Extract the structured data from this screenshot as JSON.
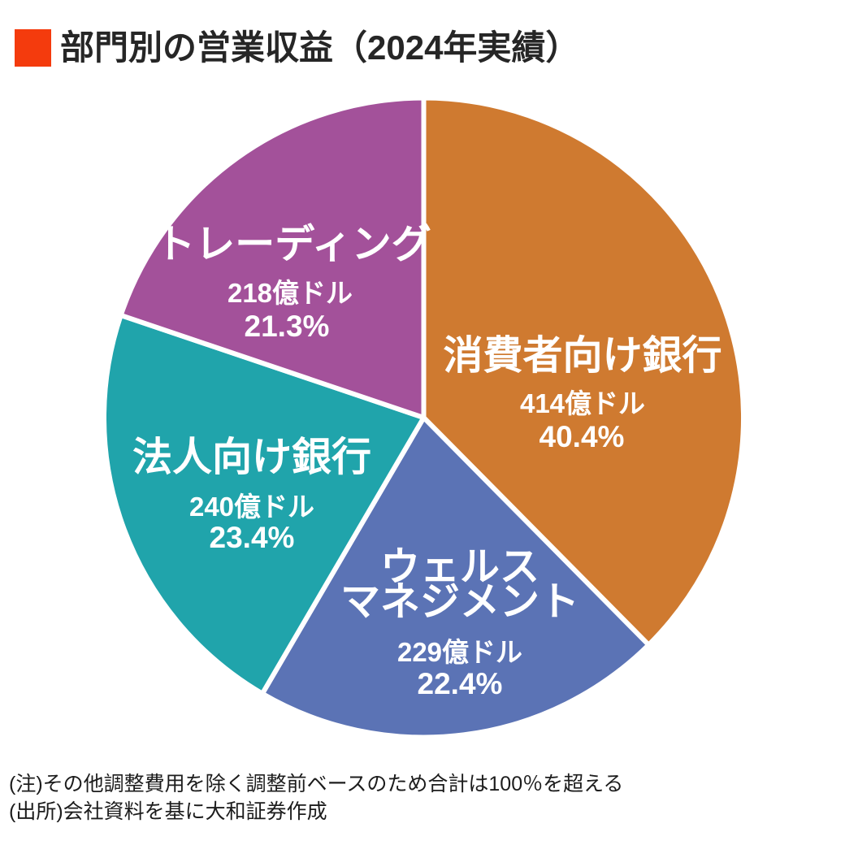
{
  "header": {
    "title": "部門別の営業収益（2024年実績）",
    "accent_color": "#f43b0d"
  },
  "chart_data": {
    "type": "pie",
    "title": "部門別の営業収益（2024年実績）",
    "unit": "億ドル",
    "start_angle_deg": 0,
    "direction": "clockwise",
    "legend_position": "none",
    "labels_inside_slices": true,
    "slices": [
      {
        "name": "消費者向け銀行",
        "value": 414,
        "percent": 40.4,
        "value_label": "414億ドル",
        "percent_label": "40.4%",
        "color": "#cf7a30"
      },
      {
        "name": "ウェルスマネジメント",
        "name_lines": [
          "ウェルス",
          "マネジメント"
        ],
        "value": 229,
        "percent": 22.4,
        "value_label": "229億ドル",
        "percent_label": "22.4%",
        "color": "#5b73b5"
      },
      {
        "name": "法人向け銀行",
        "value": 240,
        "percent": 23.4,
        "value_label": "240億ドル",
        "percent_label": "23.4%",
        "color": "#20a4ab"
      },
      {
        "name": "トレーディング",
        "value": 218,
        "percent": 21.3,
        "value_label": "218億ドル",
        "percent_label": "21.3%",
        "color": "#a3519a"
      }
    ]
  },
  "notes": [
    "(注)その他調整費用を除く調整前ベースのため合計は100％を超える",
    "(出所)会社資料を基に大和証券作成"
  ]
}
